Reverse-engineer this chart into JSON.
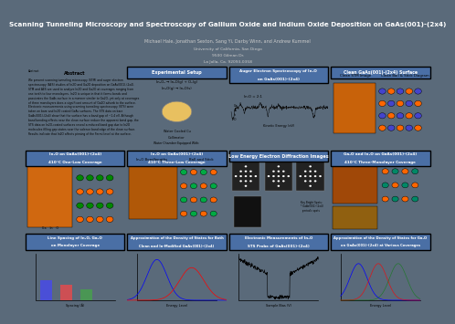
{
  "title": "Scanning Tunneling Microscopy and Spectroscopy of Gallium Oxide and Indium Oxide Deposition on GaAs(001)-(2x4)",
  "authors": "Michael Hale, Jonathan Sexton, Sang Yi, Darby Winn, and Andrew Kummel",
  "affiliation1": "University of California, San Diego",
  "affiliation2": "9500 Gilman Dr.",
  "affiliation3": "La Jolla, Ca. 92093-0358",
  "bg_color": "#5a6a7a",
  "header_bg": "#3a4a5a",
  "panel_bg": "#ffffff",
  "panel_blue_header": "#4a6fa5",
  "title_color": "#ffffff",
  "author_color": "#cccccc"
}
